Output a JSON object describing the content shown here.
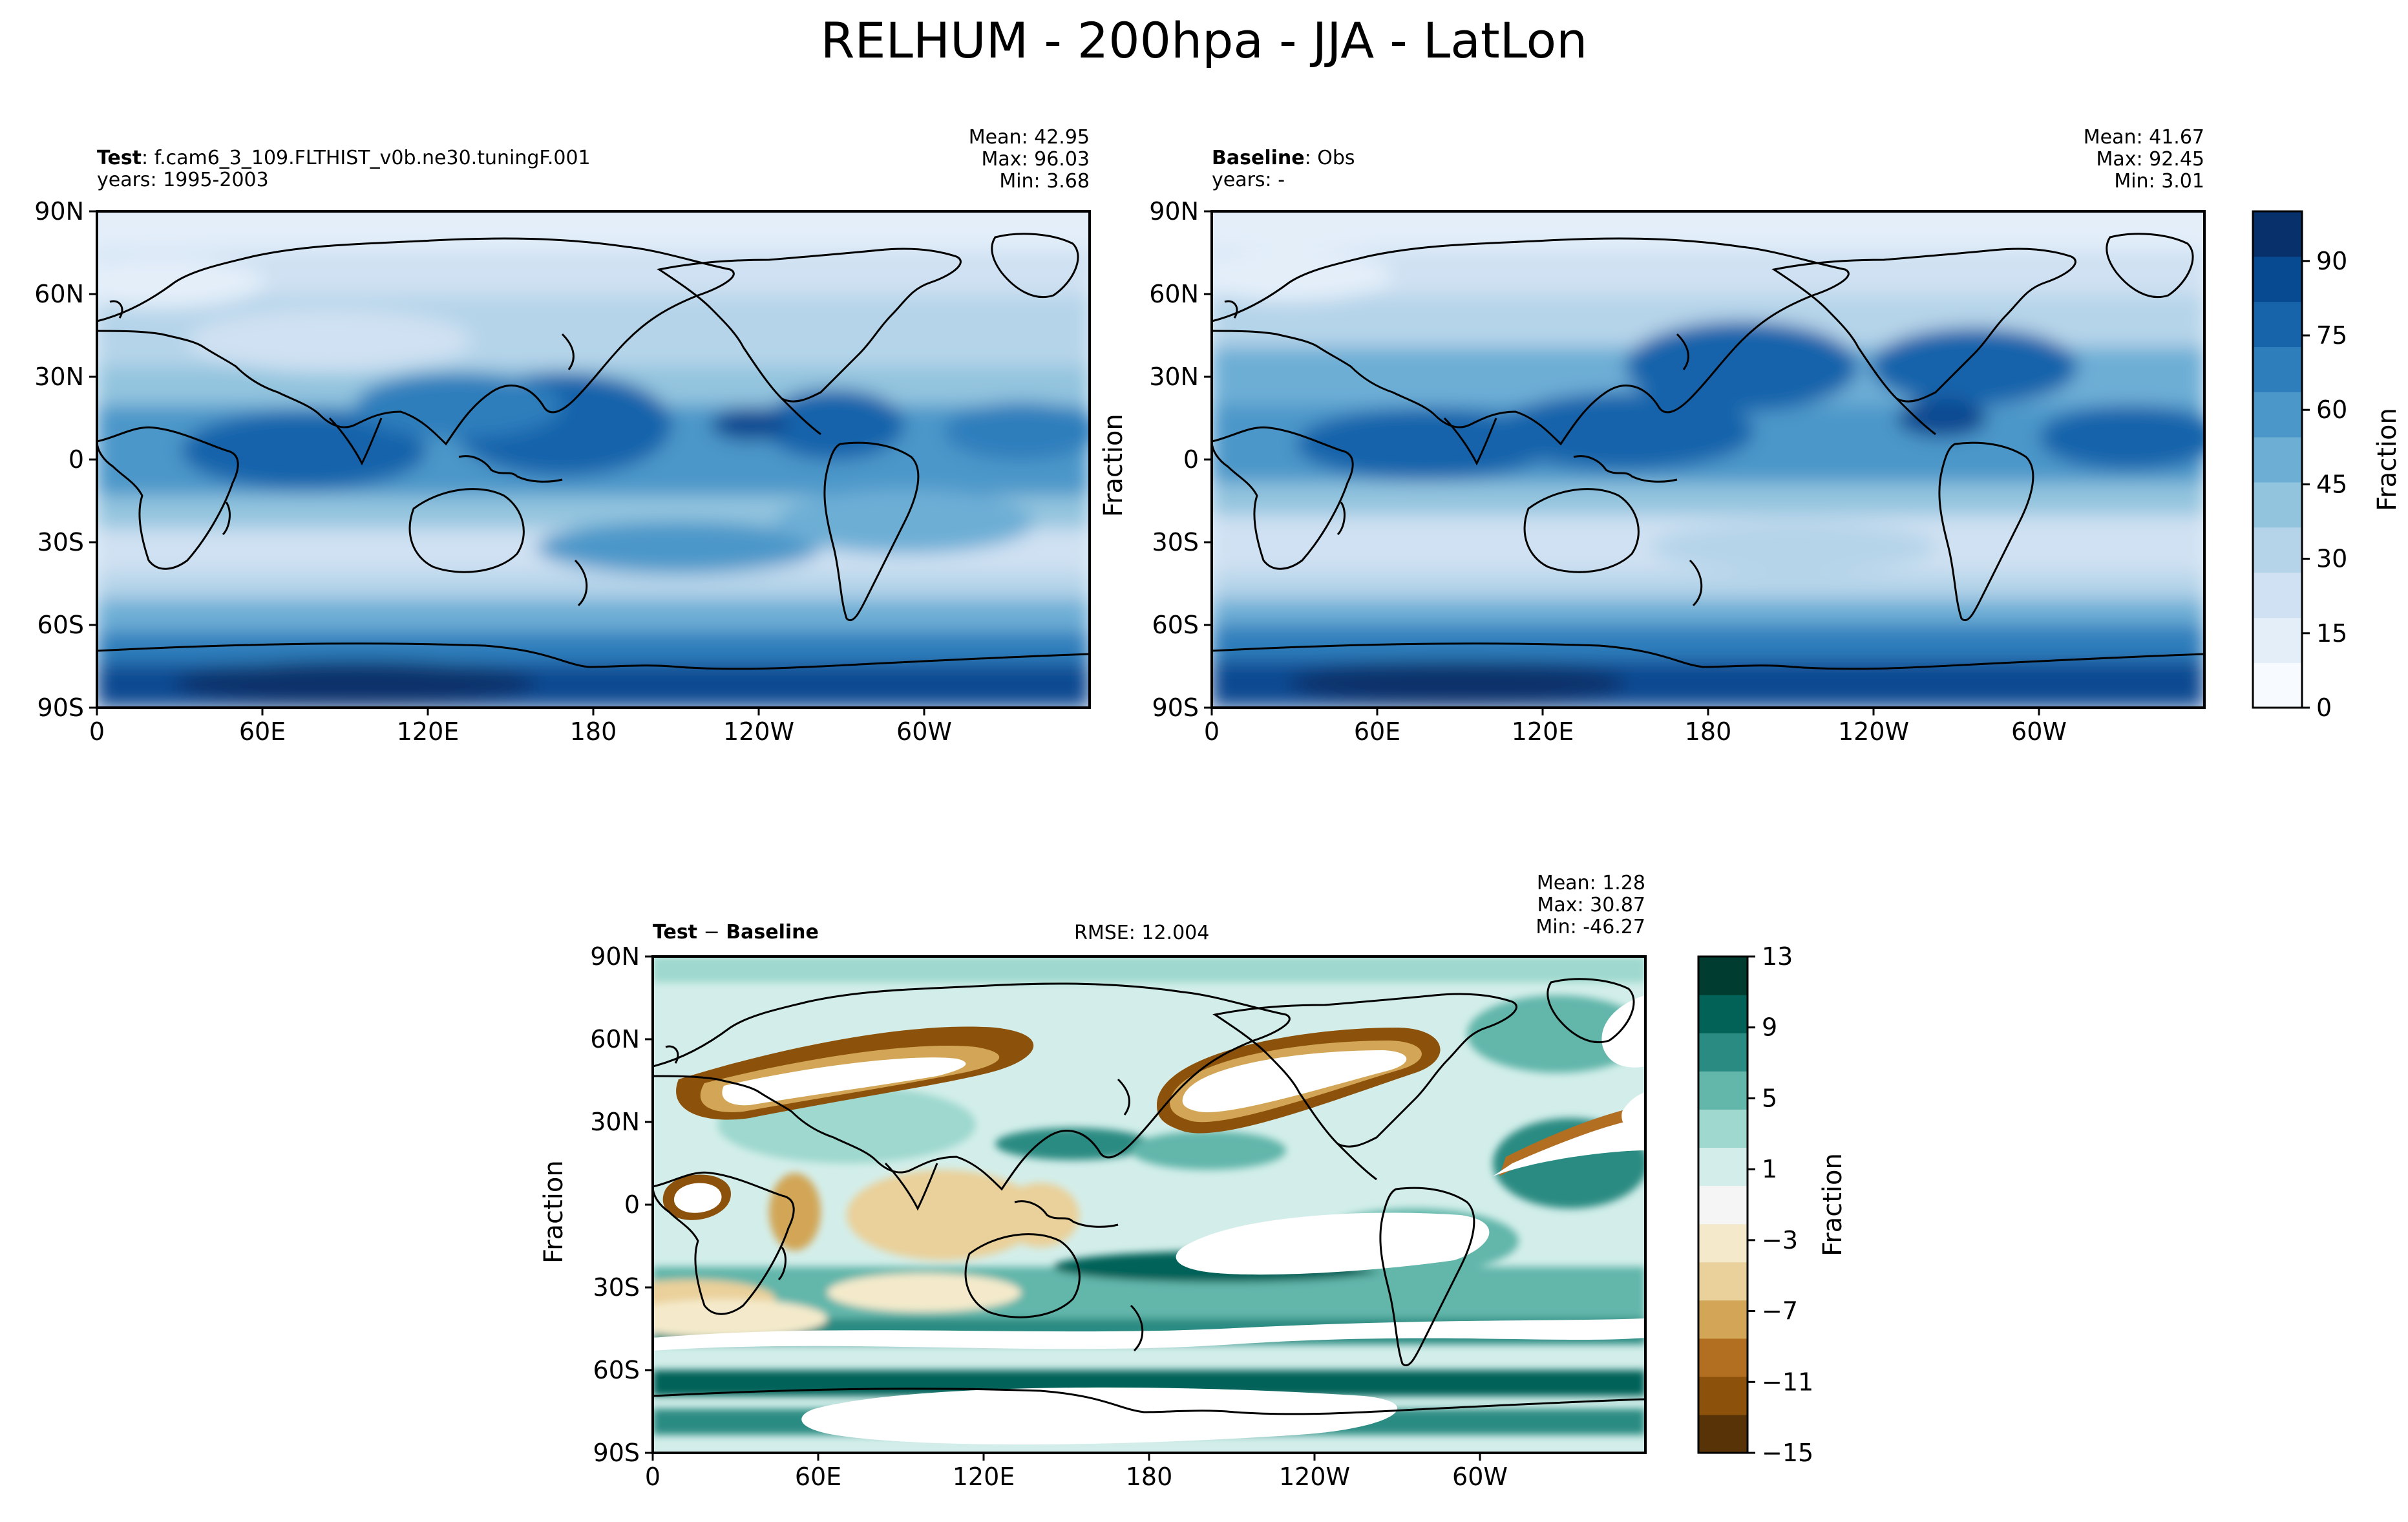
{
  "figure": {
    "title": "RELHUM - 200hpa - JJA - LatLon"
  },
  "panels": {
    "test": {
      "label": "Test",
      "sep": ":",
      "case": "f.cam6_3_109.FLTHIST_v0b.ne30.tuningF.001",
      "years": "years: 1995-2003",
      "mean": "Mean: 42.95",
      "max": "Max: 96.03",
      "min": "Min:  3.68"
    },
    "baseline": {
      "label": "Baseline",
      "sep": ":",
      "case": "Obs",
      "years": "years: -",
      "ylabel": "Fraction",
      "mean": "Mean: 41.67",
      "max": "Max: 92.45",
      "min": "Min:  3.01"
    },
    "diff": {
      "label_a": "Test",
      "op": "−",
      "label_b": "Baseline",
      "rmse": "RMSE: 12.004",
      "ylabel": "Fraction",
      "mean": "Mean:  1.28",
      "max": "Max: 30.87",
      "min": "Min: -46.27"
    }
  },
  "colors": {
    "blues": [
      "#f7fbff",
      "#e3eef9",
      "#cfe1f2",
      "#b5d4e9",
      "#93c4de",
      "#6daed5",
      "#4b97c9",
      "#2f7ebc",
      "#1764ab",
      "#084a91",
      "#08306b"
    ],
    "brbg": [
      "#573307",
      "#8c510a",
      "#b26f22",
      "#d2a656",
      "#ead09a",
      "#f4eacb",
      "#f5f5f5",
      "#d3eeea",
      "#9ed8ce",
      "#62b6aa",
      "#2a8b82",
      "#036258",
      "#003c30"
    ]
  },
  "chart_data": [
    {
      "type": "heatmap",
      "name": "test-map",
      "variable": "RELHUM",
      "level": "200hpa",
      "season": "JJA",
      "x_ticks": [
        "0",
        "60E",
        "120E",
        "180",
        "120W",
        "60W"
      ],
      "y_ticks": [
        "90N",
        "60N",
        "30N",
        "0",
        "30S",
        "60S",
        "90S"
      ],
      "xlim": [
        0,
        360
      ],
      "ylim": [
        -90,
        90
      ],
      "stats": {
        "mean": 42.95,
        "max": 96.03,
        "min": 3.68
      }
    },
    {
      "type": "heatmap",
      "name": "baseline-map",
      "x_ticks": [
        "0",
        "60E",
        "120E",
        "180",
        "120W",
        "60W"
      ],
      "y_ticks": [
        "90N",
        "60N",
        "30N",
        "0",
        "30S",
        "60S",
        "90S"
      ],
      "xlim": [
        0,
        360
      ],
      "ylim": [
        -90,
        90
      ],
      "stats": {
        "mean": 41.67,
        "max": 92.45,
        "min": 3.01
      }
    },
    {
      "type": "heatmap",
      "name": "difference-map",
      "x_ticks": [
        "0",
        "60E",
        "120E",
        "180",
        "120W",
        "60W"
      ],
      "y_ticks": [
        "90N",
        "60N",
        "30N",
        "0",
        "30S",
        "60S",
        "90S"
      ],
      "xlim": [
        0,
        360
      ],
      "ylim": [
        -90,
        90
      ],
      "stats": {
        "mean": 1.28,
        "max": 30.87,
        "min": -46.27,
        "rmse": 12.004
      }
    },
    {
      "type": "colorbar",
      "name": "colorbar-abs",
      "label": "Fraction",
      "range": [
        0,
        100
      ],
      "ticks": [
        "0",
        "15",
        "30",
        "45",
        "60",
        "75",
        "90"
      ],
      "tick_values": [
        0,
        15,
        30,
        45,
        60,
        75,
        90
      ]
    },
    {
      "type": "colorbar",
      "name": "colorbar-diff",
      "label": "Fraction",
      "range": [
        -15,
        13
      ],
      "ticks": [
        "−15",
        "−11",
        "−7",
        "−3",
        "1",
        "5",
        "9",
        "13"
      ],
      "tick_values": [
        -15,
        -11,
        -7,
        -3,
        1,
        5,
        9,
        13
      ]
    }
  ]
}
